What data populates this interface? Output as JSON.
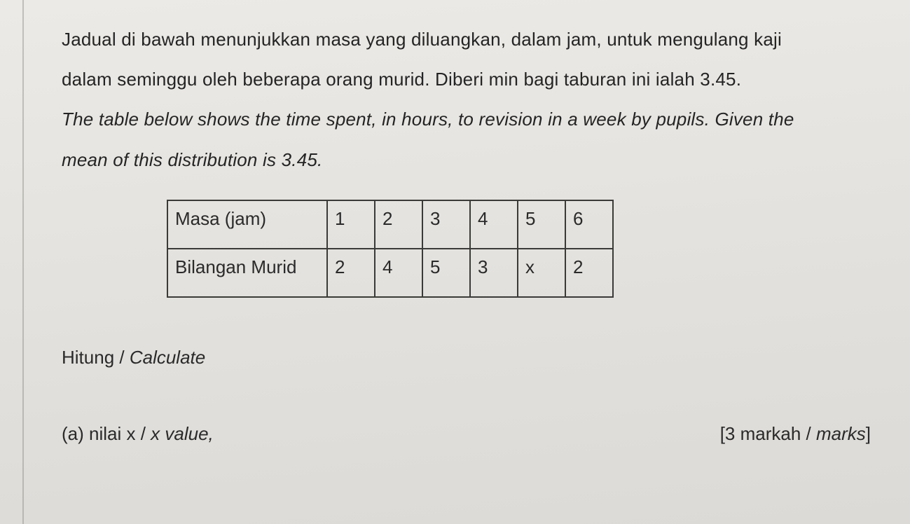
{
  "question": {
    "line1_ms": "Jadual di bawah menunjukkan masa yang diluangkan, dalam jam, untuk mengulang kaji",
    "line2_ms": "dalam seminggu oleh beberapa orang murid. Diberi min bagi taburan ini ialah 3.45.",
    "line3_en": "The table below shows the time spent, in hours, to revision in a week by pupils. Given the",
    "line4_en": "mean of this distribution is 3.45."
  },
  "table": {
    "row_header_1": "Masa (jam)",
    "row_header_2": "Bilangan Murid",
    "columns": [
      "1",
      "2",
      "3",
      "4",
      "5",
      "6"
    ],
    "row2": [
      "2",
      "4",
      "5",
      "3",
      "x",
      "2"
    ],
    "border_color": "#3a3a38",
    "cell_fontsize": 26
  },
  "calculate_label": "Hitung / ",
  "calculate_label_italic": "Calculate",
  "part_a_prefix": "(a)  nilai x / ",
  "part_a_italic": "x value,",
  "marks_text": "[3 markah / ",
  "marks_italic": "marks",
  "marks_suffix": "]",
  "colors": {
    "background": "#e8e6e2",
    "text": "#242424",
    "rule": "#8a8986"
  }
}
